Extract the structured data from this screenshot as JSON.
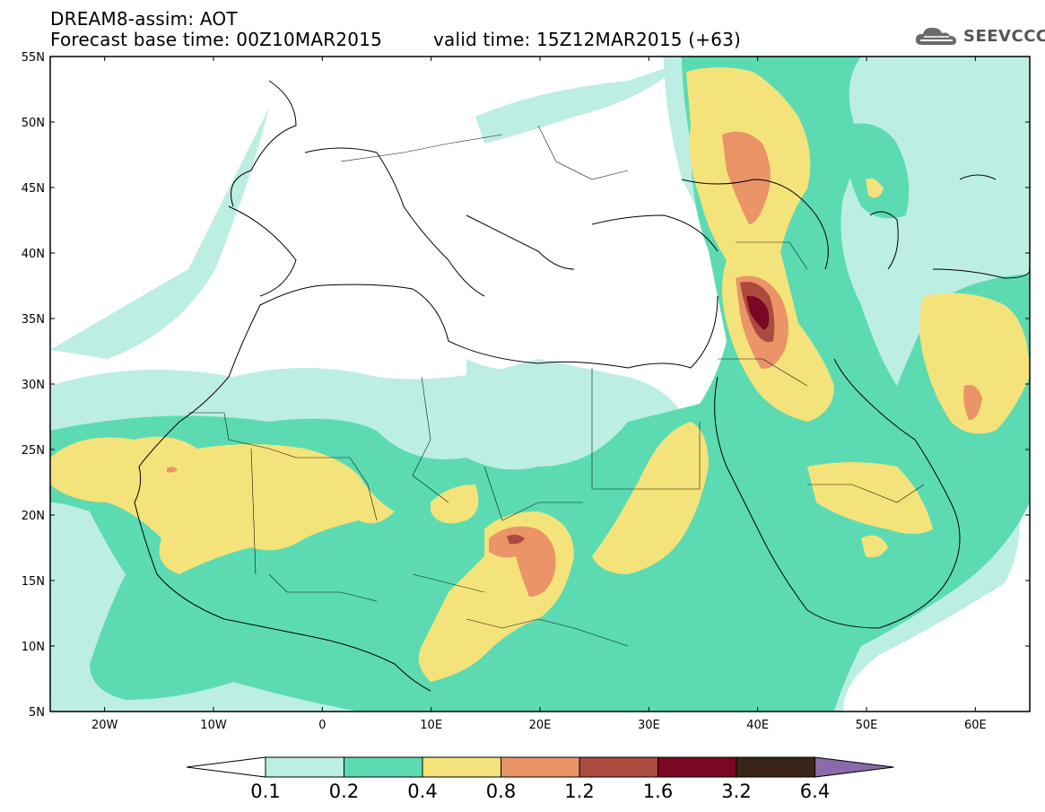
{
  "header": {
    "line1": "DREAM8-assim: AOT",
    "line2": "Forecast base time: 00Z10MAR2015",
    "line3": "valid time: 15Z12MAR2015 (+63)",
    "logo_text": "SEEVCCC"
  },
  "axes": {
    "lat_labels": [
      "55N",
      "50N",
      "45N",
      "40N",
      "35N",
      "30N",
      "25N",
      "20N",
      "15N",
      "10N",
      "5N"
    ],
    "lon_labels": [
      "20W",
      "10W",
      "0",
      "10E",
      "20E",
      "30E",
      "40E",
      "50E",
      "60E"
    ]
  },
  "colorbar": {
    "labels": [
      "0.1",
      "0.2",
      "0.4",
      "0.8",
      "1.2",
      "1.6",
      "3.2",
      "6.4"
    ],
    "colors": [
      "#ffffff",
      "#bdeee4",
      "#5cdbb2",
      "#f4e37a",
      "#ea9468",
      "#ab4a3e",
      "#7a0824",
      "#3a2418",
      "#8a6aa8"
    ]
  }
}
